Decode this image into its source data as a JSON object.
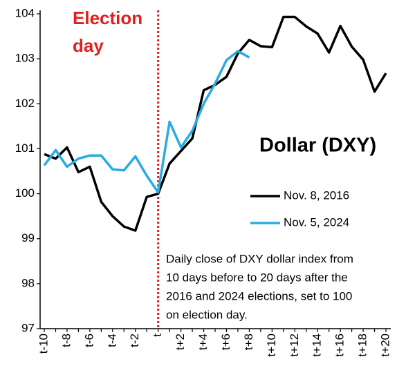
{
  "chart_data": {
    "type": "line",
    "title": "Dollar (DXY)",
    "categories": [
      "t-10",
      null,
      "t-8",
      null,
      "t-6",
      null,
      "t-4",
      null,
      "t-2",
      null,
      "t",
      null,
      "t+2",
      null,
      "t+4",
      null,
      "t+6",
      null,
      "t+8",
      null,
      "t+10",
      null,
      "t+12",
      null,
      "t+14",
      null,
      "t+16",
      null,
      "t+18",
      null,
      "t+20"
    ],
    "series": [
      {
        "name": "Nov. 8, 2016",
        "color": "#000000",
        "values": [
          100.88,
          100.78,
          101.03,
          100.48,
          100.6,
          99.82,
          99.5,
          99.27,
          99.18,
          99.93,
          100,
          100.67,
          100.95,
          101.23,
          102.3,
          102.42,
          102.6,
          103.12,
          103.42,
          103.28,
          103.26,
          103.93,
          103.93,
          103.72,
          103.56,
          103.14,
          103.73,
          103.27,
          102.98,
          102.27,
          102.68
        ]
      },
      {
        "name": "Nov. 5, 2024",
        "color": "#29abe2",
        "values": [
          100.63,
          100.97,
          100.6,
          100.78,
          100.85,
          100.85,
          100.54,
          100.52,
          100.83,
          100.4,
          100.03,
          101.6,
          101.03,
          101.4,
          102.0,
          102.45,
          102.97,
          103.17,
          103.03,
          null,
          null,
          null,
          null,
          null,
          null,
          null,
          null,
          null,
          null,
          null,
          null
        ]
      }
    ],
    "ylim": [
      97,
      104
    ],
    "yticks": [
      97,
      98,
      99,
      100,
      101,
      102,
      103,
      104
    ],
    "annotation": {
      "text": [
        "Election",
        "day"
      ],
      "x": "t",
      "color": "#e02020"
    },
    "note": [
      "Daily close of DXY dollar index from",
      "10 days before to 20 days after the",
      "2016 and 2024 elections, set to 100",
      "on election day."
    ]
  }
}
